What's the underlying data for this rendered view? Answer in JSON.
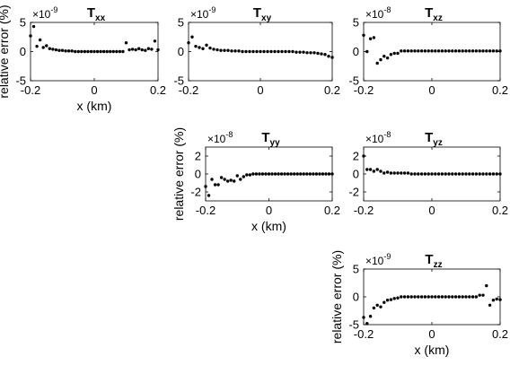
{
  "chart_data": [
    {
      "type": "scatter",
      "title": "T",
      "title_sub": "xx",
      "multiplier": "×10",
      "multiplier_exp": "-9",
      "xlim": [
        -0.2,
        0.2
      ],
      "ylim": [
        -5,
        5
      ],
      "xticks": [
        "-0.2",
        "0",
        "0.2"
      ],
      "yticks": [
        "5",
        "0",
        "-5"
      ],
      "xlabel": "x (km)",
      "ylabel": "relative error (%)",
      "grid": false,
      "x": [
        -0.2,
        -0.19,
        -0.18,
        -0.17,
        -0.16,
        -0.15,
        -0.14,
        -0.13,
        -0.12,
        -0.11,
        -0.1,
        -0.09,
        -0.08,
        -0.07,
        -0.06,
        -0.05,
        -0.04,
        -0.03,
        -0.02,
        -0.01,
        0,
        0.01,
        0.02,
        0.03,
        0.04,
        0.05,
        0.06,
        0.07,
        0.08,
        0.09,
        0.1,
        0.11,
        0.12,
        0.13,
        0.14,
        0.15,
        0.16,
        0.17,
        0.18,
        0.19,
        0.2
      ],
      "y": [
        2.7,
        4.3,
        0.9,
        2.0,
        0.7,
        1.0,
        0.5,
        0.4,
        0.3,
        0.2,
        0.2,
        0.1,
        0.1,
        0.1,
        0.0,
        0.0,
        0.0,
        0.0,
        0.0,
        0.0,
        0.0,
        0.0,
        0.0,
        0.0,
        0.0,
        0.0,
        0.0,
        0.0,
        0.0,
        0.0,
        1.5,
        0.3,
        0.4,
        0.3,
        0.5,
        0.3,
        0.2,
        0.5,
        0.4,
        1.8,
        0.3
      ]
    },
    {
      "type": "scatter",
      "title": "T",
      "title_sub": "xy",
      "multiplier": "×10",
      "multiplier_exp": "-9",
      "xlim": [
        -0.2,
        0.2
      ],
      "ylim": [
        -5,
        5
      ],
      "xticks": [
        "-0.2",
        "0",
        "0.2"
      ],
      "yticks": [
        "5",
        "0",
        "-5"
      ],
      "grid": false,
      "x": [
        -0.2,
        -0.19,
        -0.18,
        -0.17,
        -0.16,
        -0.15,
        -0.14,
        -0.13,
        -0.12,
        -0.11,
        -0.1,
        -0.09,
        -0.08,
        -0.07,
        -0.06,
        -0.05,
        -0.04,
        -0.03,
        -0.02,
        -0.01,
        0,
        0.01,
        0.02,
        0.03,
        0.04,
        0.05,
        0.06,
        0.07,
        0.08,
        0.09,
        0.1,
        0.11,
        0.12,
        0.13,
        0.14,
        0.15,
        0.16,
        0.17,
        0.18,
        0.19,
        0.2
      ],
      "y": [
        1.5,
        2.5,
        0.9,
        0.7,
        0.5,
        1.1,
        0.6,
        0.4,
        0.3,
        0.2,
        0.2,
        0.2,
        0.1,
        0.1,
        0.1,
        0.0,
        0.0,
        0.0,
        0.0,
        0.0,
        0.0,
        0.0,
        0.0,
        0.0,
        0.0,
        0.0,
        0.0,
        0.0,
        0.0,
        0.0,
        -0.1,
        -0.1,
        -0.1,
        -0.2,
        -0.2,
        -0.2,
        -0.3,
        -0.4,
        -0.5,
        -0.8,
        -1.0
      ]
    },
    {
      "type": "scatter",
      "title": "T",
      "title_sub": "xz",
      "multiplier": "×10",
      "multiplier_exp": "-8",
      "xlim": [
        -0.2,
        0.2
      ],
      "ylim": [
        -5,
        5
      ],
      "xticks": [
        "-0.2",
        "0",
        "0.2"
      ],
      "yticks": [
        "5",
        "0",
        "-5"
      ],
      "grid": false,
      "x": [
        -0.2,
        -0.19,
        -0.18,
        -0.17,
        -0.16,
        -0.15,
        -0.14,
        -0.13,
        -0.12,
        -0.11,
        -0.1,
        -0.09,
        -0.08,
        -0.07,
        -0.06,
        -0.05,
        -0.04,
        -0.03,
        -0.02,
        -0.01,
        0,
        0.01,
        0.02,
        0.03,
        0.04,
        0.05,
        0.06,
        0.07,
        0.08,
        0.09,
        0.1,
        0.11,
        0.12,
        0.13,
        0.14,
        0.15,
        0.16,
        0.17,
        0.18,
        0.19,
        0.2
      ],
      "y": [
        2.8,
        0.0,
        2.2,
        2.4,
        -2.0,
        -1.4,
        -0.8,
        -1.1,
        -0.5,
        -0.3,
        -0.3,
        0.1,
        0.1,
        0.1,
        0.1,
        0.1,
        0.1,
        0.1,
        0.1,
        0.1,
        0.1,
        0.1,
        0.1,
        0.1,
        0.1,
        0.1,
        0.1,
        0.1,
        0.1,
        0.1,
        0.1,
        0.1,
        0.1,
        0.1,
        0.1,
        0.1,
        0.1,
        0.1,
        0.1,
        0.1,
        0.1
      ]
    },
    {
      "type": "scatter",
      "title": "T",
      "title_sub": "yy",
      "multiplier": "×10",
      "multiplier_exp": "-8",
      "xlim": [
        -0.2,
        0.2
      ],
      "ylim": [
        -3,
        3
      ],
      "xticks": [
        "-0.2",
        "0",
        "0.2"
      ],
      "yticks": [
        "2",
        "0",
        "-2"
      ],
      "xlabel": "x (km)",
      "ylabel": "relative error (%)",
      "grid": false,
      "x": [
        -0.2,
        -0.19,
        -0.18,
        -0.17,
        -0.16,
        -0.15,
        -0.14,
        -0.13,
        -0.12,
        -0.11,
        -0.1,
        -0.09,
        -0.08,
        -0.07,
        -0.06,
        -0.05,
        -0.04,
        -0.03,
        -0.02,
        -0.01,
        0,
        0.01,
        0.02,
        0.03,
        0.04,
        0.05,
        0.06,
        0.07,
        0.08,
        0.09,
        0.1,
        0.11,
        0.12,
        0.13,
        0.14,
        0.15,
        0.16,
        0.17,
        0.18,
        0.19,
        0.2
      ],
      "y": [
        -1.4,
        -2.4,
        -0.6,
        -1.2,
        -1.2,
        -0.4,
        -0.6,
        -0.8,
        -0.7,
        -0.8,
        -0.2,
        -0.6,
        -0.3,
        -0.1,
        -0.1,
        0.0,
        0.0,
        0.0,
        0.0,
        0.0,
        0.0,
        0.0,
        0.0,
        0.0,
        0.0,
        0.0,
        0.0,
        0.0,
        0.0,
        0.0,
        0.0,
        0.0,
        0.0,
        0.0,
        0.0,
        0.0,
        0.0,
        0.0,
        0.0,
        0.0,
        0.0
      ]
    },
    {
      "type": "scatter",
      "title": "T",
      "title_sub": "yz",
      "multiplier": "×10",
      "multiplier_exp": "-8",
      "xlim": [
        -0.2,
        0.2
      ],
      "ylim": [
        -3,
        3
      ],
      "xticks": [
        "-0.2",
        "0",
        "0.2"
      ],
      "yticks": [
        "2",
        "0",
        "-2"
      ],
      "grid": false,
      "x": [
        -0.2,
        -0.19,
        -0.18,
        -0.17,
        -0.16,
        -0.15,
        -0.14,
        -0.13,
        -0.12,
        -0.11,
        -0.1,
        -0.09,
        -0.08,
        -0.07,
        -0.06,
        -0.05,
        -0.04,
        -0.03,
        -0.02,
        -0.01,
        0,
        0.01,
        0.02,
        0.03,
        0.04,
        0.05,
        0.06,
        0.07,
        0.08,
        0.09,
        0.1,
        0.11,
        0.12,
        0.13,
        0.14,
        0.15,
        0.16,
        0.17,
        0.18,
        0.19,
        0.2
      ],
      "y": [
        2.0,
        0.5,
        0.5,
        0.3,
        0.5,
        0.3,
        0.1,
        0.2,
        0.1,
        0.1,
        0.1,
        0.1,
        0.1,
        0.1,
        0.0,
        0.0,
        0.0,
        0.0,
        0.0,
        0.0,
        0.0,
        0.0,
        0.0,
        0.0,
        0.0,
        0.0,
        0.0,
        0.0,
        0.0,
        0.0,
        0.0,
        0.0,
        0.0,
        0.0,
        0.0,
        0.0,
        0.0,
        0.0,
        0.0,
        0.0,
        0.0
      ]
    },
    {
      "type": "scatter",
      "title": "T",
      "title_sub": "zz",
      "multiplier": "×10",
      "multiplier_exp": "-9",
      "xlim": [
        -0.2,
        0.2
      ],
      "ylim": [
        -5,
        5
      ],
      "xticks": [
        "-0.2",
        "0",
        "0.2"
      ],
      "yticks": [
        "5",
        "0",
        "-5"
      ],
      "xlabel": "x (km)",
      "ylabel": "relative error (%)",
      "grid": false,
      "x": [
        -0.2,
        -0.19,
        -0.18,
        -0.17,
        -0.16,
        -0.15,
        -0.14,
        -0.13,
        -0.12,
        -0.11,
        -0.1,
        -0.09,
        -0.08,
        -0.07,
        -0.06,
        -0.05,
        -0.04,
        -0.03,
        -0.02,
        -0.01,
        0,
        0.01,
        0.02,
        0.03,
        0.04,
        0.05,
        0.06,
        0.07,
        0.08,
        0.09,
        0.1,
        0.11,
        0.12,
        0.13,
        0.14,
        0.15,
        0.16,
        0.17,
        0.18,
        0.19,
        0.2
      ],
      "y": [
        -3.7,
        -4.8,
        -3.5,
        -2.0,
        -1.5,
        -1.8,
        -1.0,
        -0.6,
        -0.5,
        -0.3,
        -0.2,
        0.0,
        0.0,
        0.0,
        0.0,
        0.0,
        0.0,
        0.0,
        0.0,
        0.0,
        0.0,
        0.0,
        0.0,
        0.0,
        0.0,
        0.0,
        0.0,
        0.0,
        0.0,
        0.0,
        0.0,
        0.0,
        0.0,
        0.0,
        0.3,
        0.3,
        2.0,
        -1.5,
        -0.6,
        -0.4,
        -0.5
      ]
    }
  ]
}
